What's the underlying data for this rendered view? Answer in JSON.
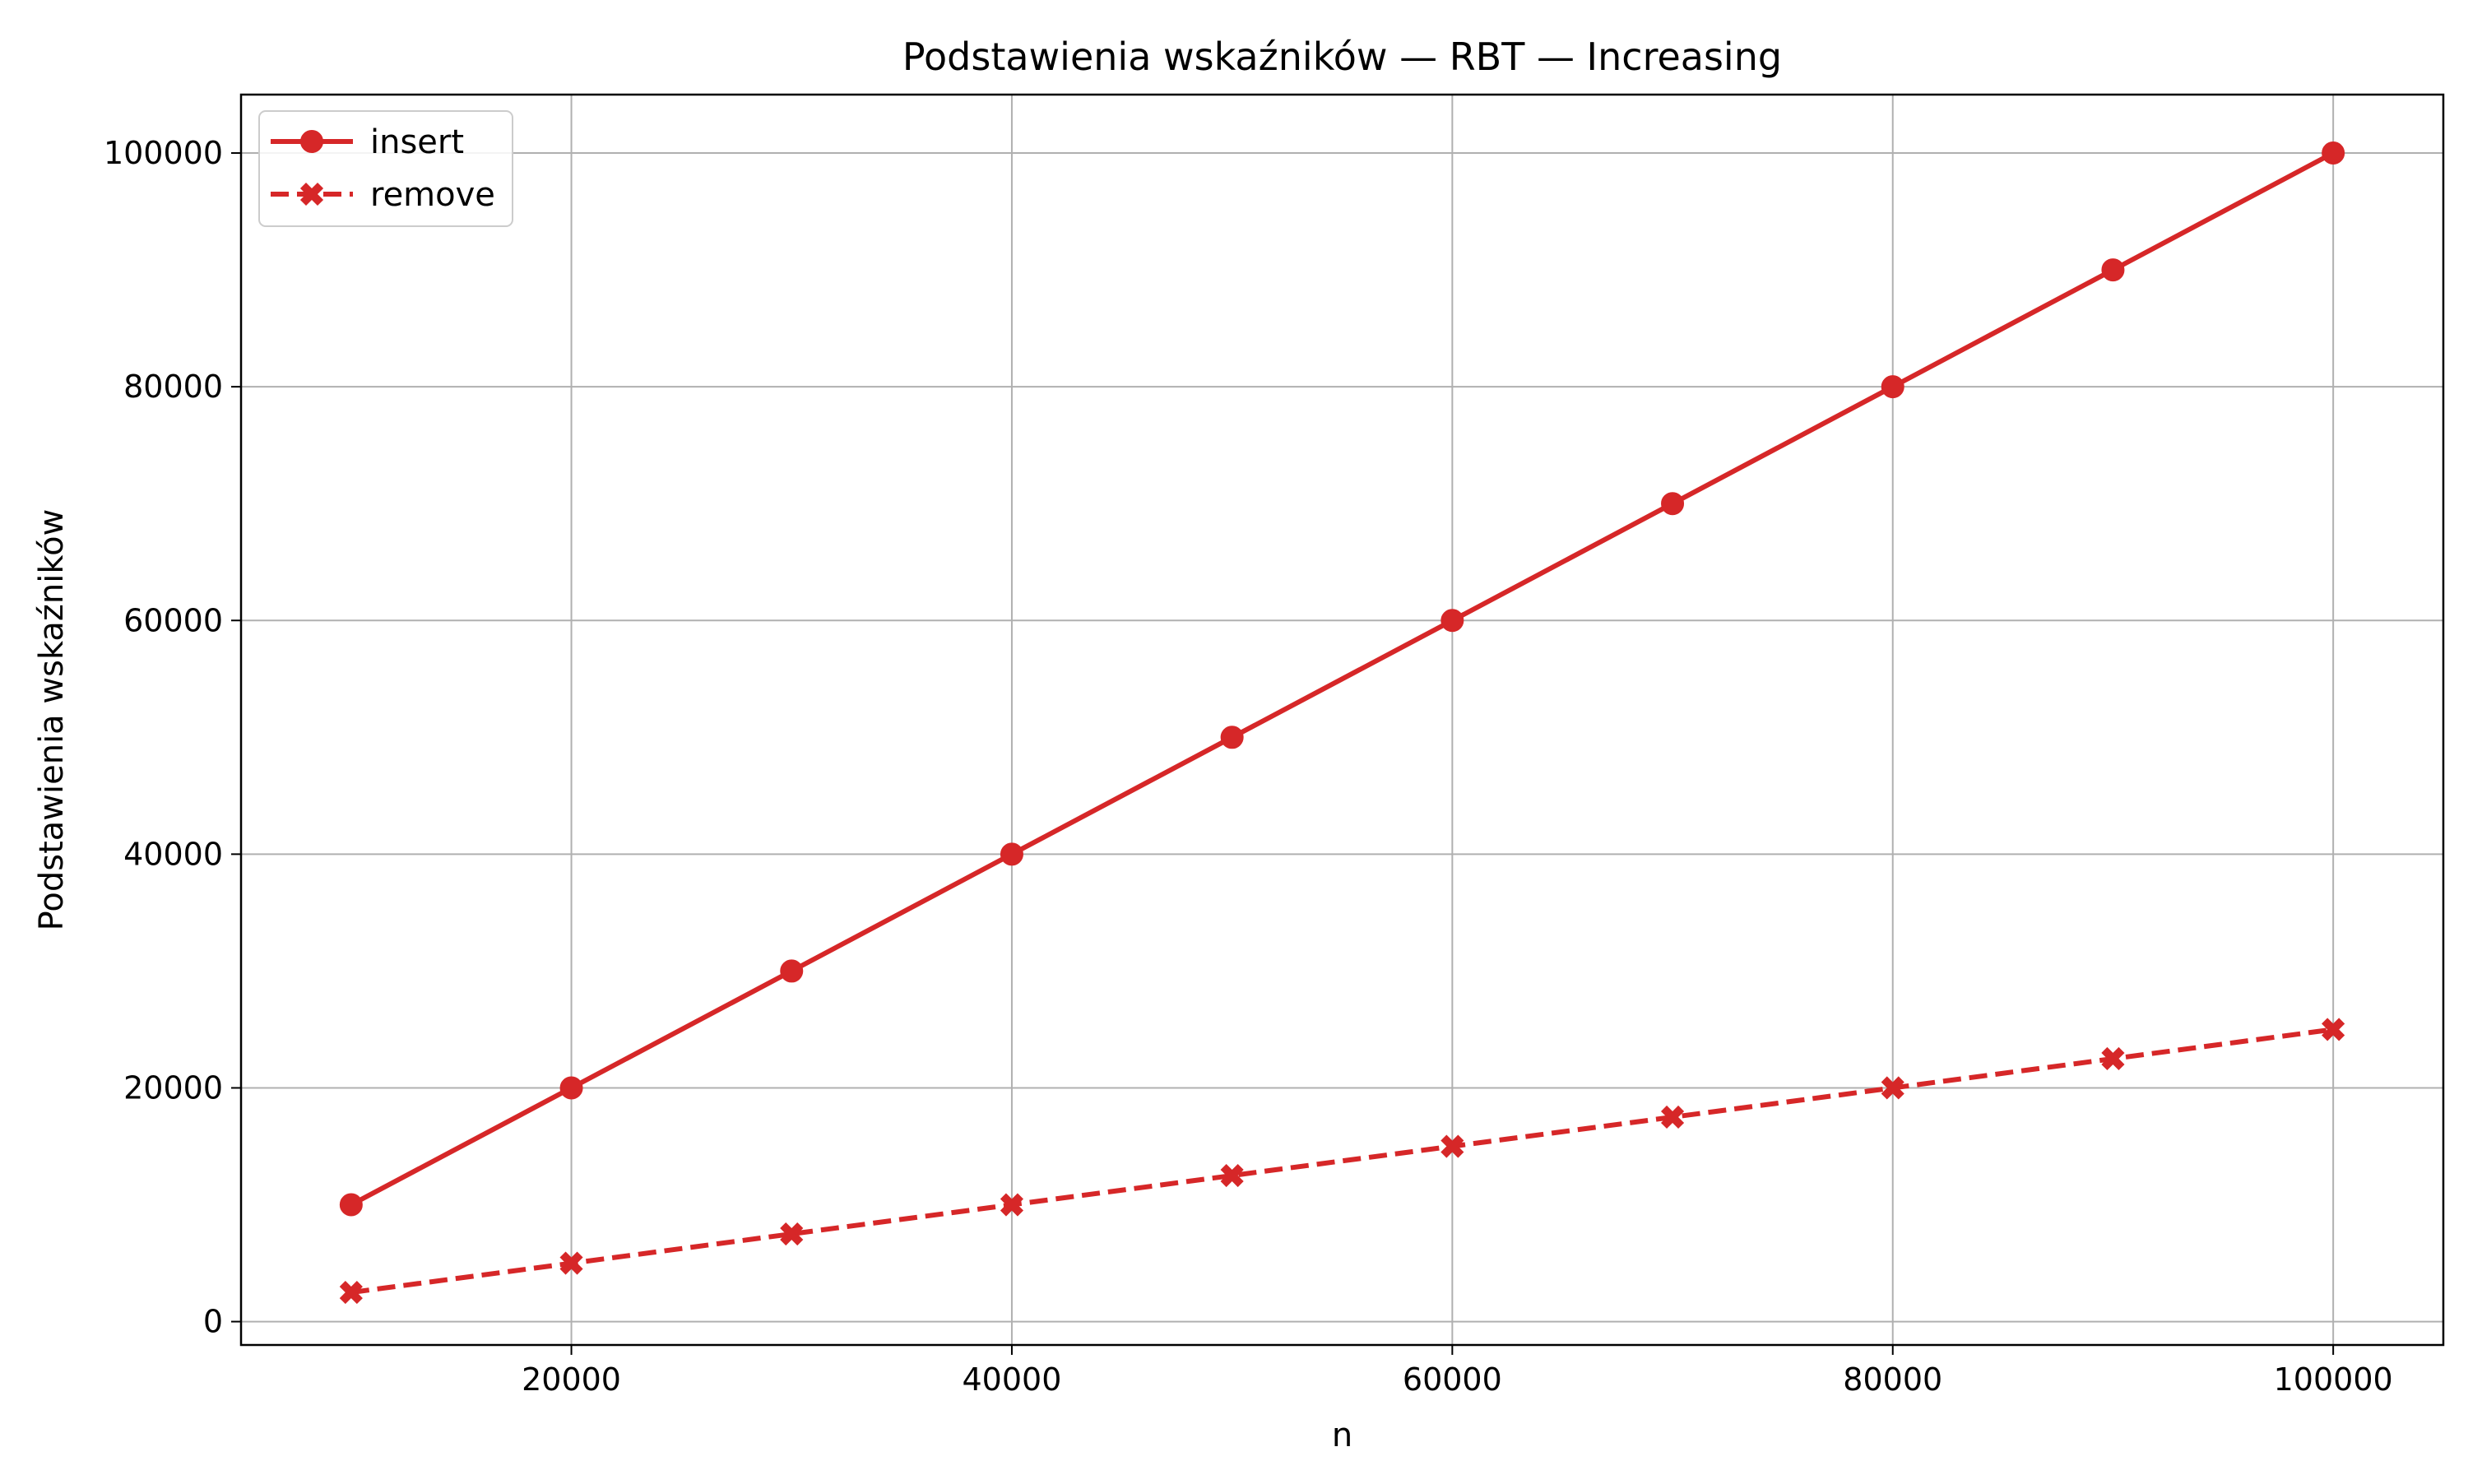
{
  "chart_data": {
    "type": "line",
    "title": "Podstawienia wskaźników — RBT — Increasing",
    "xlabel": "n",
    "ylabel": "Podstawienia wskaźników",
    "x": [
      10000,
      20000,
      30000,
      40000,
      50000,
      60000,
      70000,
      80000,
      90000,
      100000
    ],
    "xlim": [
      5000,
      105000
    ],
    "ylim": [
      -2000,
      105000
    ],
    "xticks": [
      20000,
      40000,
      60000,
      80000,
      100000
    ],
    "yticks": [
      0,
      20000,
      40000,
      60000,
      80000,
      100000
    ],
    "grid": true,
    "legend_position": "top-left",
    "series": [
      {
        "name": "insert",
        "values": [
          10000,
          20000,
          30000,
          40000,
          50000,
          60000,
          70000,
          80000,
          90000,
          100000
        ],
        "color": "#d62728",
        "line_style": "solid",
        "marker": "circle"
      },
      {
        "name": "remove",
        "values": [
          2500,
          5000,
          7500,
          10000,
          12500,
          15000,
          17500,
          20000,
          22500,
          25000
        ],
        "color": "#d62728",
        "line_style": "dashed",
        "marker": "x-filled"
      }
    ]
  }
}
